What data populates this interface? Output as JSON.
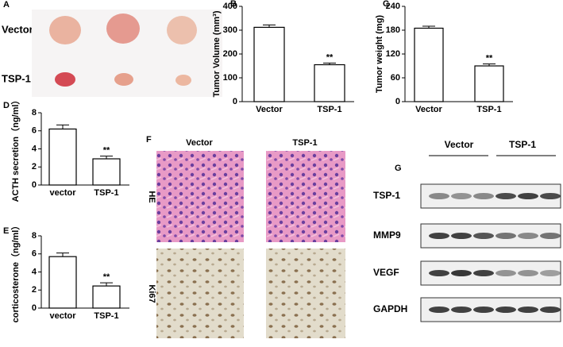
{
  "chart_data": [
    {
      "type": "bar",
      "panel": "B",
      "ylabel": "Tumor Volume (mm³)",
      "categories": [
        "Vector",
        "TSP-1"
      ],
      "values": [
        312,
        155
      ],
      "errors": [
        10,
        7
      ],
      "annotation": "**",
      "color": "#ffffff",
      "ylim": [
        0,
        400
      ],
      "yticks": [
        0,
        100,
        200,
        300,
        400
      ]
    },
    {
      "type": "bar",
      "panel": "C",
      "ylabel": "Tumor weight (mg)",
      "categories": [
        "Vector",
        "TSP-1"
      ],
      "values": [
        185,
        90
      ],
      "errors": [
        5,
        5
      ],
      "annotation": "**",
      "color": "#ffffff",
      "ylim": [
        0,
        240
      ],
      "yticks": [
        0,
        60,
        120,
        180,
        240
      ]
    },
    {
      "type": "bar",
      "panel": "D",
      "ylabel": "ACTH secretion（ng/ml）",
      "categories": [
        "vector",
        "TSP-1"
      ],
      "values": [
        6.2,
        2.9
      ],
      "errors": [
        0.45,
        0.3
      ],
      "annotation": "**",
      "color": "#ffffff",
      "ylim": [
        0,
        8
      ],
      "yticks": [
        0,
        2,
        4,
        6,
        8
      ]
    },
    {
      "type": "bar",
      "panel": "E",
      "ylabel": "corticosterone（ng/ml）",
      "categories": [
        "vector",
        "TSP-1"
      ],
      "values": [
        5.7,
        2.45
      ],
      "errors": [
        0.4,
        0.35
      ],
      "annotation": "**",
      "color": "#ffffff",
      "ylim": [
        0,
        8
      ],
      "yticks": [
        0,
        2,
        4,
        6,
        8
      ]
    }
  ],
  "panels": {
    "A": {
      "label": "A",
      "rows": [
        "Vector",
        "TSP-1"
      ]
    },
    "F": {
      "label": "F",
      "columns": [
        "Vector",
        "TSP-1"
      ],
      "rows": [
        "HE",
        "Ki67"
      ]
    },
    "G": {
      "label": "G",
      "groups": [
        "Vector",
        "TSP-1"
      ],
      "rows": [
        "TSP-1",
        "MMP9",
        "VEGF",
        "GAPDH"
      ]
    }
  }
}
